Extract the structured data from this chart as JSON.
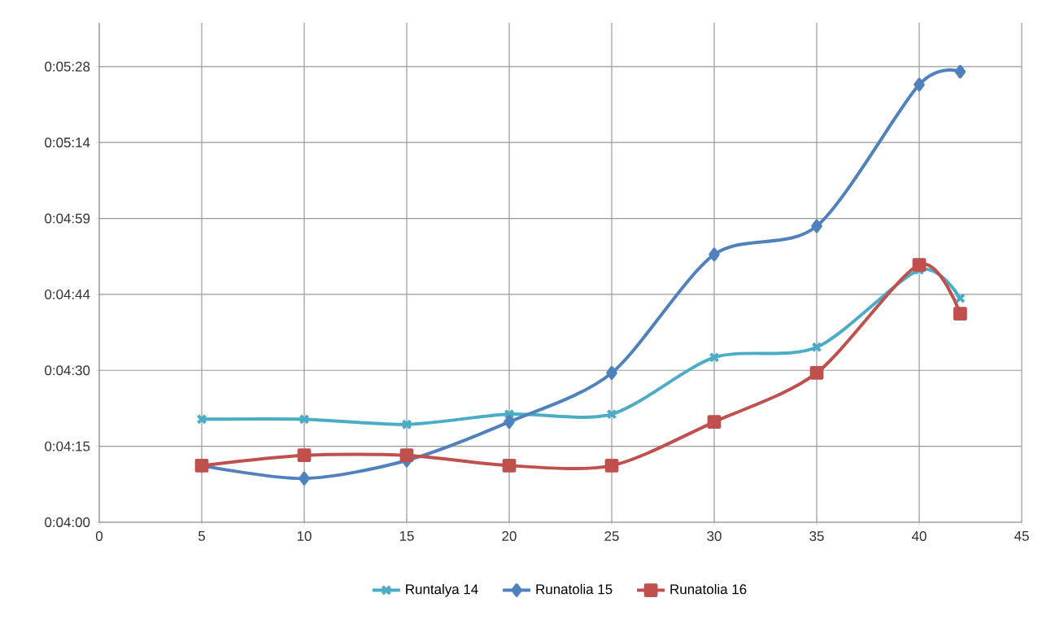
{
  "chart_data": {
    "type": "line",
    "x": [
      5,
      10,
      15,
      20,
      25,
      30,
      35,
      40,
      42
    ],
    "series": [
      {
        "name": "Runtalya 14",
        "color": "#4bacc6",
        "marker": "cross",
        "values": [
          260,
          260,
          259,
          261,
          261,
          272,
          274,
          289,
          283.5
        ]
      },
      {
        "name": "Runatolia 15",
        "color": "#4f81bd",
        "marker": "diamond",
        "values": [
          251,
          248.5,
          252,
          259.5,
          269,
          292,
          297.5,
          325,
          327.5
        ]
      },
      {
        "name": "Runatolia 16",
        "color": "#c0504d",
        "marker": "square",
        "values": [
          251,
          253,
          253,
          251,
          251,
          259.5,
          269,
          290,
          280.5
        ]
      }
    ],
    "xlim": [
      0,
      45
    ],
    "xticks": [
      0,
      5,
      10,
      15,
      20,
      25,
      30,
      35,
      40,
      45
    ],
    "ylim": [
      240,
      337
    ],
    "yticks": [
      {
        "value": 240,
        "label": "0:04:00"
      },
      {
        "value": 254.75,
        "label": "0:04:15"
      },
      {
        "value": 269.5,
        "label": "0:04:30"
      },
      {
        "value": 284.25,
        "label": "0:04:44"
      },
      {
        "value": 299,
        "label": "0:04:59"
      },
      {
        "value": 313.75,
        "label": "0:05:14"
      },
      {
        "value": 328.5,
        "label": "0:05:28"
      }
    ],
    "grid": true,
    "legend": "bottom",
    "line_style": "solid"
  }
}
